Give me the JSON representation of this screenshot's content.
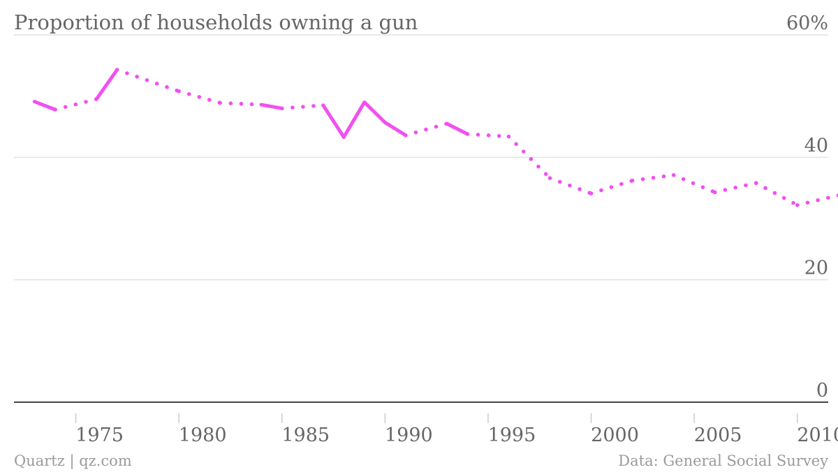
{
  "chart_data": {
    "type": "line",
    "title": "Proportion of households owning a gun",
    "xlabel": "",
    "ylabel": "",
    "y_unit_suffix": "%",
    "ylim": [
      0,
      60
    ],
    "xlim": [
      1972,
      2011.5
    ],
    "y_ticks": [
      0,
      20,
      40,
      60
    ],
    "y_tick_labels": [
      "0",
      "20",
      "40",
      "60%"
    ],
    "x_ticks": [
      1975,
      1980,
      1985,
      1990,
      1995,
      2000,
      2005,
      2010
    ],
    "x_tick_labels": [
      "1975",
      "1980",
      "1985",
      "1990",
      "1995",
      "2000",
      "2005",
      "2010"
    ],
    "grid": true,
    "legend": "none",
    "line_color": "#f050f0",
    "series": [
      {
        "x": [
          1973,
          1974,
          1976,
          1977,
          1980,
          1982,
          1984,
          1985,
          1987,
          1988,
          1989,
          1990,
          1991,
          1993,
          1994,
          1996,
          1998,
          2000,
          2002,
          2004,
          2006,
          2008,
          2010,
          2012
        ],
        "values": [
          49.1,
          47.8,
          49.5,
          54.3,
          50.8,
          48.9,
          48.6,
          48.0,
          48.5,
          43.3,
          49.0,
          45.7,
          43.6,
          45.5,
          43.8,
          43.4,
          36.6,
          34.1,
          36.2,
          37.1,
          34.3,
          35.8,
          32.2,
          33.8
        ]
      }
    ]
  },
  "footer": {
    "source_left": "Quartz | qz.com",
    "source_right": "Data: General Social Survey"
  }
}
